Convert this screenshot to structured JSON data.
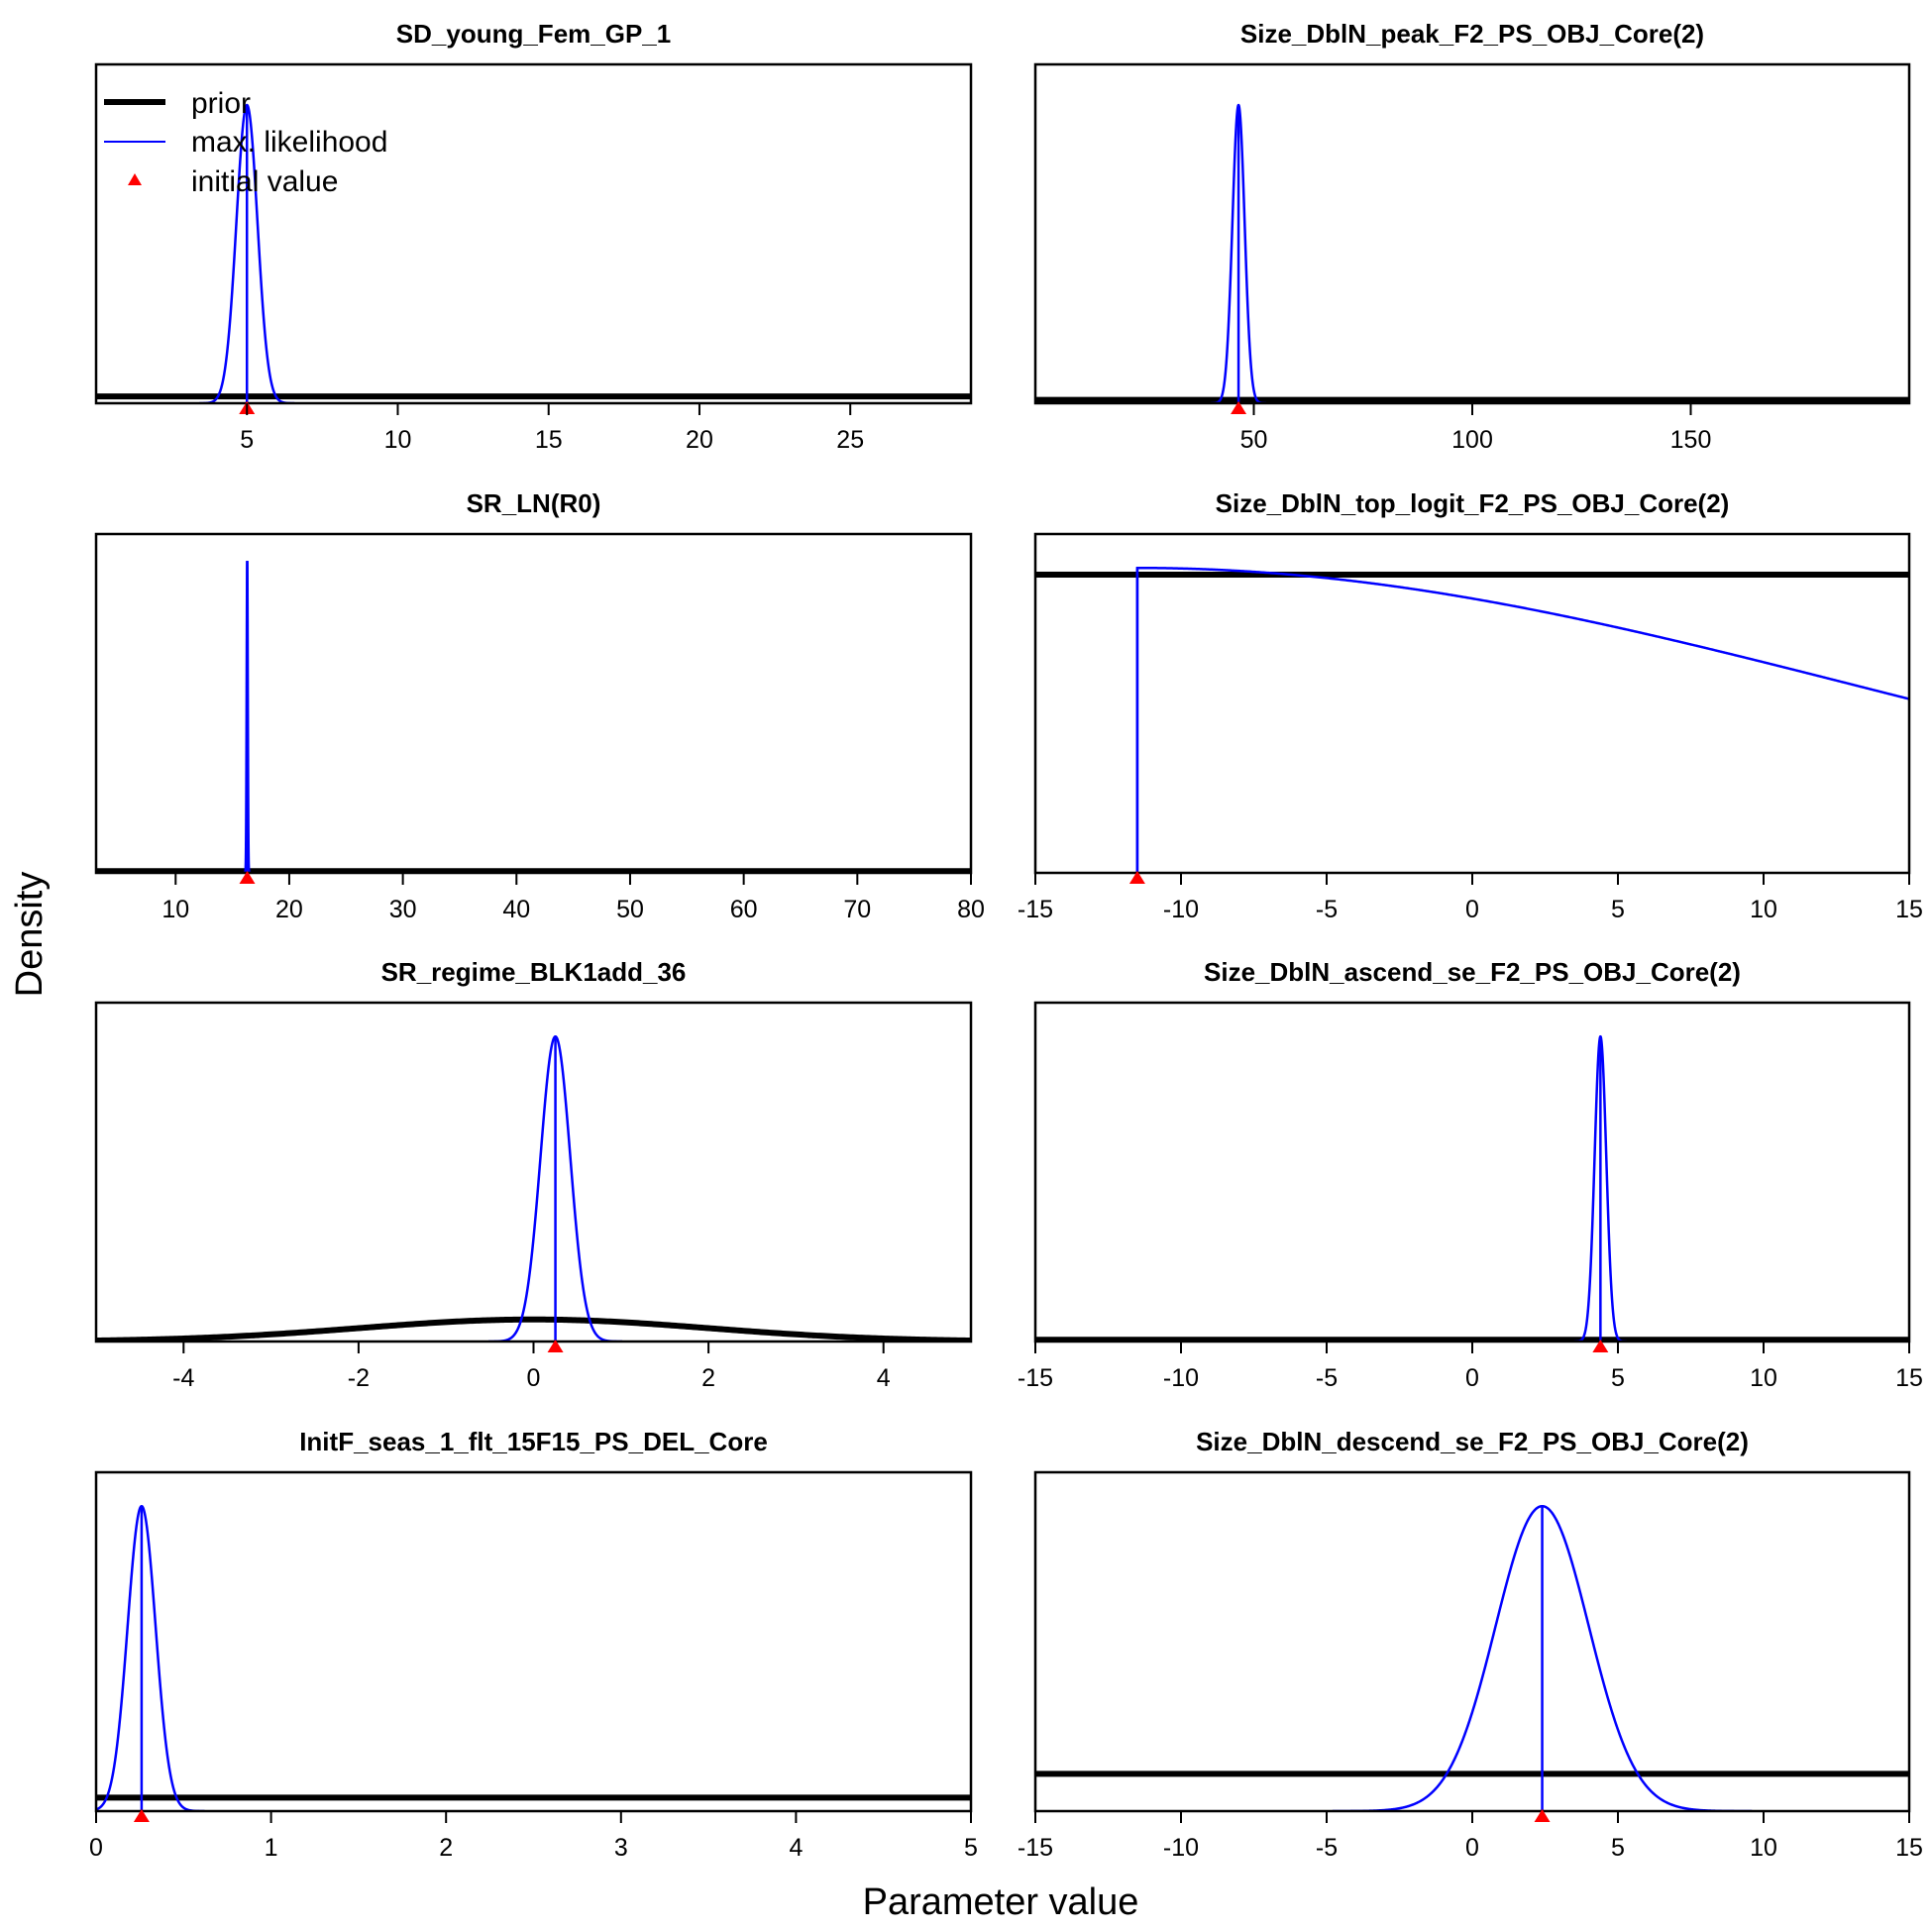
{
  "chart_data": {
    "type": "line",
    "xlabel": "Parameter value",
    "ylabel": "Density",
    "legend": {
      "placement": "top-left of first panel",
      "entries": [
        {
          "label": "prior",
          "color": "#000000",
          "style": "thick-line"
        },
        {
          "label": "max. likelihood",
          "color": "#0000ff",
          "style": "thin-line"
        },
        {
          "label": "initial value",
          "color": "#ff0000",
          "style": "triangle"
        }
      ]
    },
    "colors": {
      "prior": "#000000",
      "mle": "#0000ff",
      "initial": "#ff0000"
    },
    "panels": [
      {
        "title": "SD_young_Fem_GP_1",
        "xlim": [
          0,
          29
        ],
        "xticks": [
          5,
          10,
          15,
          20,
          25
        ],
        "mle": {
          "mean": 5.0,
          "sd": 0.35
        },
        "mle_height": 0.88,
        "prior": {
          "type": "flat",
          "level": 0.02
        },
        "initial": 5.0
      },
      {
        "title": "Size_DblN_peak_F2_PS_OBJ_Core(2)",
        "xlim": [
          0,
          200
        ],
        "xticks": [
          50,
          100,
          150
        ],
        "mle": {
          "mean": 46.5,
          "sd": 1.4
        },
        "mle_height": 0.88,
        "prior": {
          "type": "flat",
          "level": 0.01
        },
        "initial": 46.5
      },
      {
        "title": "SR_LN(R0)",
        "xlim": [
          3,
          80
        ],
        "xticks": [
          10,
          20,
          30,
          40,
          50,
          60,
          70,
          80
        ],
        "mle": {
          "mean": 16.3,
          "sd": 0.05
        },
        "mle_height": 0.92,
        "prior": {
          "type": "flat",
          "level": 0.005
        },
        "initial": 16.3
      },
      {
        "title": "Size_DblN_top_logit_F2_PS_OBJ_Core(2)",
        "xlim": [
          -15,
          15
        ],
        "xticks": [
          -15,
          -10,
          -5,
          0,
          5,
          10,
          15
        ],
        "mle": {
          "mean": -11.5,
          "sd": 25
        },
        "mle_height": 0.9,
        "prior": {
          "type": "flat",
          "level": 0.88
        },
        "initial": -11.5,
        "mle_lower_bound": -11.5
      },
      {
        "title": "SR_regime_BLK1add_36",
        "xlim": [
          -5,
          5
        ],
        "xticks": [
          -4,
          -2,
          0,
          2,
          4
        ],
        "mle": {
          "mean": 0.25,
          "sd": 0.17
        },
        "mle_height": 0.9,
        "prior": {
          "type": "normal",
          "mean": 0,
          "sd": 2,
          "height": 0.065
        },
        "initial": 0.25
      },
      {
        "title": "Size_DblN_ascend_se_F2_PS_OBJ_Core(2)",
        "xlim": [
          -15,
          15
        ],
        "xticks": [
          -15,
          -10,
          -5,
          0,
          5,
          10,
          15
        ],
        "mle": {
          "mean": 4.4,
          "sd": 0.2
        },
        "mle_height": 0.9,
        "prior": {
          "type": "flat",
          "level": 0.005
        },
        "initial": 4.4
      },
      {
        "title": "InitF_seas_1_flt_15F15_PS_DEL_Core",
        "xlim": [
          0,
          5
        ],
        "xticks": [
          0,
          1,
          2,
          3,
          4,
          5
        ],
        "mle": {
          "mean": 0.26,
          "sd": 0.08
        },
        "mle_height": 0.9,
        "prior": {
          "type": "flat",
          "level": 0.04
        },
        "initial": 0.26
      },
      {
        "title": "Size_DblN_descend_se_F2_PS_OBJ_Core(2)",
        "xlim": [
          -15,
          15
        ],
        "xticks": [
          -15,
          -10,
          -5,
          0,
          5,
          10,
          15
        ],
        "mle": {
          "mean": 2.4,
          "sd": 1.6
        },
        "mle_height": 0.9,
        "prior": {
          "type": "flat",
          "level": 0.11
        },
        "initial": 2.4
      }
    ]
  }
}
